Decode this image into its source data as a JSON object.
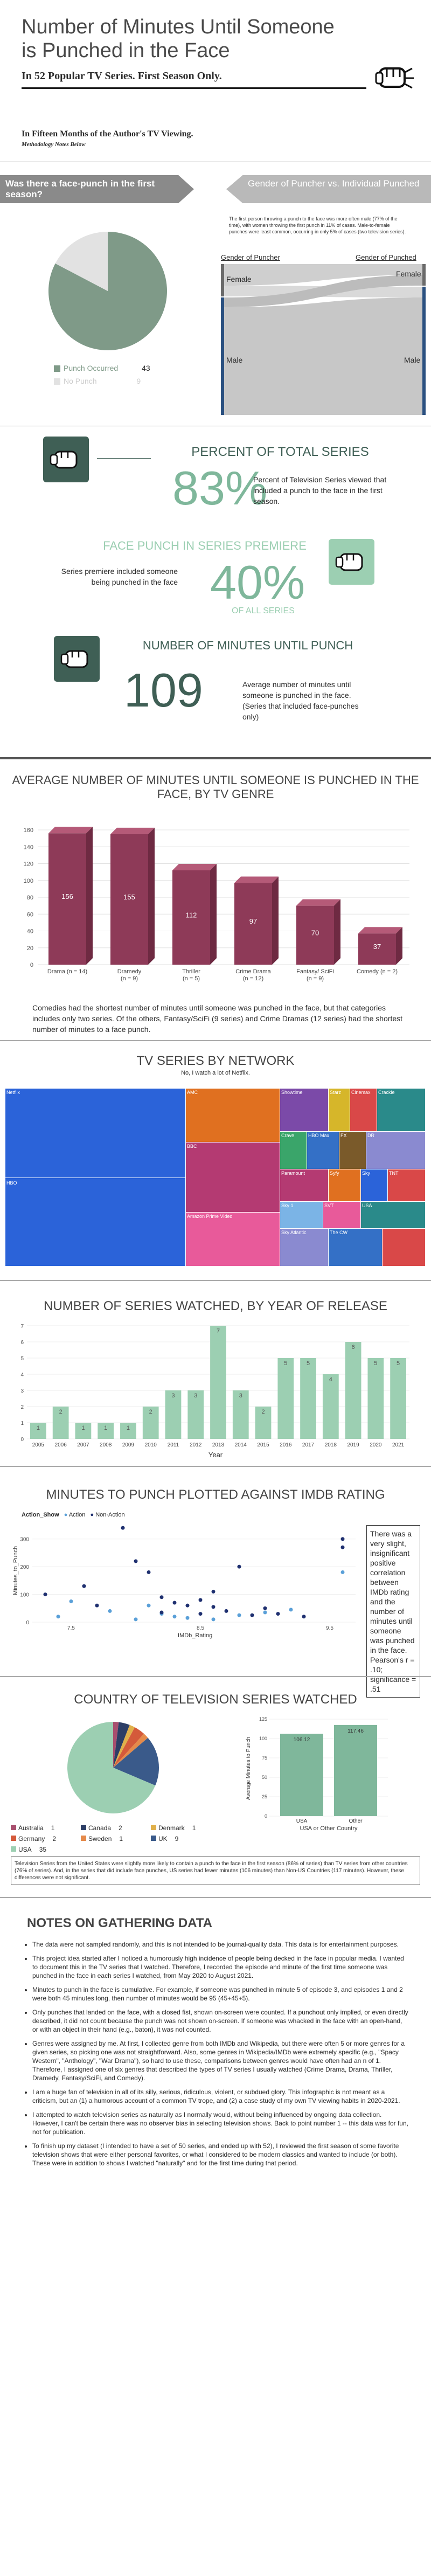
{
  "header": {
    "title": "Number of Minutes Until Someone is Punched in the Face",
    "subtitle": "In 52 Popular TV Series. First Season Only.",
    "section_title": "In Fifteen Months of the Author's TV Viewing.",
    "methodology": "Methodology Notes Below"
  },
  "question": {
    "label": "Was there a face-punch in the first season?",
    "legend": [
      {
        "label": "Punch Occurred",
        "value": "43",
        "color": "#7f9a88"
      },
      {
        "label": "No Punch",
        "value": "9",
        "color": "#e2e2e2"
      }
    ]
  },
  "gender": {
    "banner": "Gender of Puncher vs. Individual Punched",
    "desc": "The first person throwing a punch to the face was more often male (77% of the time), with women throwing the first punch in 11% of cases. Male-to-female punches were least common, occurring in only 5% of cases (two television series).",
    "left_title": "Gender of Puncher",
    "right_title": "Gender of Punched",
    "female": "Female",
    "male": "Male"
  },
  "stats": {
    "pct_total_title": "PERCENT OF TOTAL SERIES",
    "pct_total_value": "83%",
    "pct_total_desc": "Percent of Television Series viewed that included a punch to the face in the first season.",
    "premiere_title": "FACE PUNCH IN SERIES PREMIERE",
    "premiere_desc": "Series premiere included someone being punched in the face",
    "premiere_value": "40%",
    "premiere_sub": "OF ALL SERIES",
    "minutes_title": "NUMBER OF MINUTES UNTIL PUNCH",
    "minutes_value": "109",
    "minutes_desc": "Average number of minutes until someone is punched in the face. (Series that included face-punches only)"
  },
  "genre": {
    "title": "AVERAGE NUMBER OF MINUTES UNTIL SOMEONE IS PUNCHED IN THE FACE, BY TV GENRE",
    "note": "Comedies had the shortest number of minutes until someone was punched in the face, but that categories includes only two series. Of the others, Fantasy/SciFi (9 series) and Crime Dramas (12 series) had the shortest number of minutes to a face punch."
  },
  "network": {
    "title": "TV SERIES BY NETWORK",
    "subtitle": "No, I watch a lot of Netflix."
  },
  "years": {
    "title": "NUMBER OF SERIES WATCHED, BY YEAR OF RELEASE",
    "xlabel": "Year"
  },
  "imdb": {
    "title": "MINUTES TO PUNCH PLOTTED AGAINST IMDB RATING",
    "legend_title": "Action_Show",
    "legend_action": "Action",
    "legend_non": "Non-Action",
    "xlabel": "IMDb_Rating",
    "ylabel": "Minutes_to_Punch",
    "note": "There was a very slight, insignificant positive correlation between IMDb rating and the number of minutes until someone was punched in the face. Pearson's r = .10; significance = .51"
  },
  "country": {
    "title": "COUNTRY OF TELEVISION SERIES WATCHED",
    "bar_ylabel": "Average Minutes to Punch",
    "bar_xlabel": "USA or Other Country",
    "footnote": "Television Series from the United States were slightly more likely to contain a punch to the face in the first season (86% of series) than TV series from other countries (76% of series). And, in the series that did include face punches, US series had fewer minutes (106 minutes) than Non-US Countries (117 minutes). However, these differences were not significant.",
    "legend": [
      {
        "label": "Australia",
        "value": "1",
        "color": "#a84f6e"
      },
      {
        "label": "Canada",
        "value": "2",
        "color": "#2c3e66"
      },
      {
        "label": "Denmark",
        "value": "1",
        "color": "#e0b04a"
      },
      {
        "label": "Germany",
        "value": "2",
        "color": "#d45a3a"
      },
      {
        "label": "Sweden",
        "value": "1",
        "color": "#e58a4a"
      },
      {
        "label": "UK",
        "value": "9",
        "color": "#3a5a8a"
      },
      {
        "label": "USA",
        "value": "35",
        "color": "#9ccfb2"
      }
    ]
  },
  "notes": {
    "title": "NOTES ON GATHERING DATA",
    "items": [
      "The data were not sampled randomly, and this is not intended to be journal-quality data. This data is for entertainment purposes.",
      "This project idea started after I noticed a humorously high incidence of people being decked in the face in popular media. I wanted to document this in the TV series that I watched. Therefore, I recorded the episode and minute of the first time someone was punched in the face in each series I watched, from May 2020 to August 2021.",
      "Minutes to punch in the face is cumulative. For example, if someone was punched in minute 5 of episode 3, and episodes 1 and 2 were both 45 minutes long, then number of minutes would be 95 (45+45+5).",
      "Only punches that landed on the face, with a closed fist, shown on-screen were counted. If a punchout only implied, or even directly described, it did not count because the punch was not shown on-screen. If someone was whacked in the face with an open-hand, or with an object in their hand (e.g., baton), it was not counted.",
      "Genres were assigned by me. At first, I collected genre from both IMDb and Wikipedia, but there were often 5 or more genres for a given series, so picking one was not straightforward. Also, some genres in Wikipedia/IMDb were extremely specific (e.g., \"Spacy Western\", \"Anthology\", \"War Drama\"), so hard to use these, comparisons between genres would have often had an n of 1. Therefore, I assigned one of six genres that described the types of TV series I usually watched (Crime Drama, Drama, Thriller, Dramedy, Fantasy/SciFi, and Comedy).",
      "I am a huge fan of television in all of its silly, serious, ridiculous, violent, or subdued glory. This infographic is not meant as a criticism, but an (1) a humorous account of a common TV trope, and (2) a case study of my own TV viewing habits in 2020-2021.",
      "I attempted to watch television series as naturally as I normally would, without being influenced by ongoing data collection. However, I can't be certain there was no observer bias in selecting television shows. Back to point number 1 -- this data was for fun, not for publication.",
      "To finish up my dataset (I intended to have a set of 50 series, and ended up with 52), I reviewed the first season of some favorite television shows that were either personal favorites, or what I considered to be modern classics and wanted to include (or both). These were in addition to shows I watched \"naturally\" and for the first time during that period."
    ]
  },
  "chart_data": [
    {
      "type": "pie",
      "title": "Was there a face-punch in the first season?",
      "labels": [
        "Punch Occurred",
        "No Punch"
      ],
      "values": [
        43,
        9
      ]
    },
    {
      "type": "bar",
      "title": "AVERAGE NUMBER OF MINUTES UNTIL SOMEONE IS PUNCHED IN THE FACE, BY TV GENRE",
      "categories": [
        "Drama (n = 14)",
        "Dramedy (n = 9)",
        "Thriller (n = 5)",
        "Crime Drama (n = 12)",
        "Fantasy/ SciFi (n = 9)",
        "Comedy (n = 2)"
      ],
      "values": [
        156,
        155,
        112,
        97,
        70,
        37
      ],
      "ylim": [
        0,
        160
      ],
      "yticks": [
        0,
        20,
        40,
        60,
        80,
        100,
        120,
        140,
        160
      ]
    },
    {
      "type": "heatmap",
      "title": "TV SERIES BY NETWORK",
      "labels": [
        "Netflix",
        "HBO",
        "AMC",
        "BBC",
        "Amazon Prime Video",
        "Showtime",
        "Starz",
        "Cinemax",
        "Crackle",
        "Crave",
        "HBO Max",
        "FX",
        "DR",
        "Paramount",
        "Syfy",
        "Sky",
        "TNT",
        "NBC",
        "Sky 1",
        "SVT",
        "USA",
        "Sky Atlantic",
        "The CW"
      ]
    },
    {
      "type": "bar",
      "title": "NUMBER OF SERIES WATCHED, BY YEAR OF RELEASE",
      "categories": [
        "2005",
        "2006",
        "2007",
        "2008",
        "2009",
        "2010",
        "2011",
        "2012",
        "2013",
        "2014",
        "2015",
        "2016",
        "2017",
        "2018",
        "2019",
        "2020",
        "2021"
      ],
      "values": [
        1,
        2,
        1,
        1,
        1,
        2,
        3,
        3,
        7,
        3,
        2,
        5,
        5,
        4,
        6,
        5,
        5
      ],
      "ylim": [
        0,
        7
      ],
      "xlabel": "Year"
    },
    {
      "type": "scatter",
      "title": "MINUTES TO PUNCH PLOTTED AGAINST IMDB RATING",
      "xlabel": "IMDb_Rating",
      "ylabel": "Minutes_to_Punch",
      "xlim": [
        7.2,
        9.7
      ],
      "ylim": [
        0,
        350
      ],
      "series": [
        {
          "name": "Action",
          "points": [
            [
              7.4,
              20
            ],
            [
              7.5,
              75
            ],
            [
              7.8,
              40
            ],
            [
              8.0,
              10
            ],
            [
              8.1,
              60
            ],
            [
              8.2,
              30
            ],
            [
              8.3,
              20
            ],
            [
              8.4,
              15
            ],
            [
              8.6,
              10
            ],
            [
              8.8,
              25
            ],
            [
              9.0,
              35
            ],
            [
              9.2,
              45
            ],
            [
              9.6,
              180
            ]
          ]
        },
        {
          "name": "Non-Action",
          "points": [
            [
              7.3,
              100
            ],
            [
              7.6,
              130
            ],
            [
              7.9,
              340
            ],
            [
              8.0,
              220
            ],
            [
              8.1,
              180
            ],
            [
              8.2,
              90
            ],
            [
              8.3,
              70
            ],
            [
              8.4,
              60
            ],
            [
              8.5,
              80
            ],
            [
              8.5,
              30
            ],
            [
              8.6,
              55
            ],
            [
              8.7,
              40
            ],
            [
              8.8,
              200
            ],
            [
              8.9,
              25
            ],
            [
              9.0,
              50
            ],
            [
              9.1,
              30
            ],
            [
              9.3,
              20
            ],
            [
              9.6,
              300
            ],
            [
              9.6,
              270
            ],
            [
              8.2,
              35
            ],
            [
              7.7,
              60
            ],
            [
              8.6,
              110
            ]
          ]
        }
      ]
    },
    {
      "type": "pie",
      "title": "COUNTRY OF TELEVISION SERIES WATCHED",
      "labels": [
        "Australia",
        "Canada",
        "Denmark",
        "Germany",
        "Sweden",
        "UK",
        "USA"
      ],
      "values": [
        1,
        2,
        1,
        2,
        1,
        9,
        35
      ]
    },
    {
      "type": "bar",
      "categories": [
        "USA",
        "Other"
      ],
      "values": [
        106.12,
        117.46
      ],
      "ylim": [
        0,
        125
      ],
      "ylabel": "Average Minutes to Punch",
      "xlabel": "USA or Other Country"
    }
  ]
}
